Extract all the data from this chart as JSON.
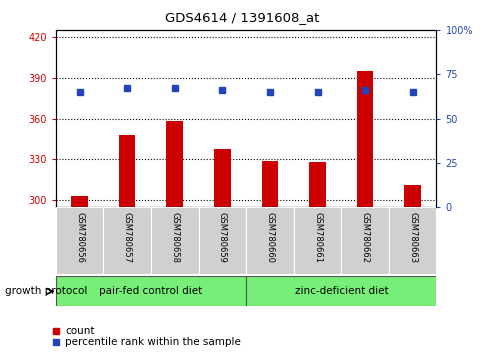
{
  "title": "GDS4614 / 1391608_at",
  "samples": [
    "GSM780656",
    "GSM780657",
    "GSM780658",
    "GSM780659",
    "GSM780660",
    "GSM780661",
    "GSM780662",
    "GSM780663"
  ],
  "counts": [
    303,
    348,
    358,
    338,
    329,
    328,
    395,
    311
  ],
  "percentiles": [
    65,
    67,
    67,
    66,
    65,
    65,
    66,
    65
  ],
  "ylim_left": [
    295,
    425
  ],
  "ylim_right": [
    0,
    100
  ],
  "yticks_left": [
    300,
    330,
    360,
    390,
    420
  ],
  "yticks_right": [
    0,
    25,
    50,
    75,
    100
  ],
  "ytick_labels_right": [
    "0",
    "25",
    "50",
    "75",
    "100%"
  ],
  "bar_color": "#cc0000",
  "dot_color": "#2244bb",
  "group1_label": "pair-fed control diet",
  "group2_label": "zinc-deficient diet",
  "group1_indices": [
    0,
    1,
    2,
    3
  ],
  "group2_indices": [
    4,
    5,
    6,
    7
  ],
  "group_color": "#77ee77",
  "protocol_label": "growth protocol",
  "legend_count": "count",
  "legend_percentile": "percentile rank within the sample",
  "bar_width": 0.35,
  "gridline_color": "#000000",
  "axis_color_left": "#cc0000",
  "axis_color_right": "#2244bb",
  "bg_gray": "#d0d0d0",
  "spine_color": "#000000"
}
